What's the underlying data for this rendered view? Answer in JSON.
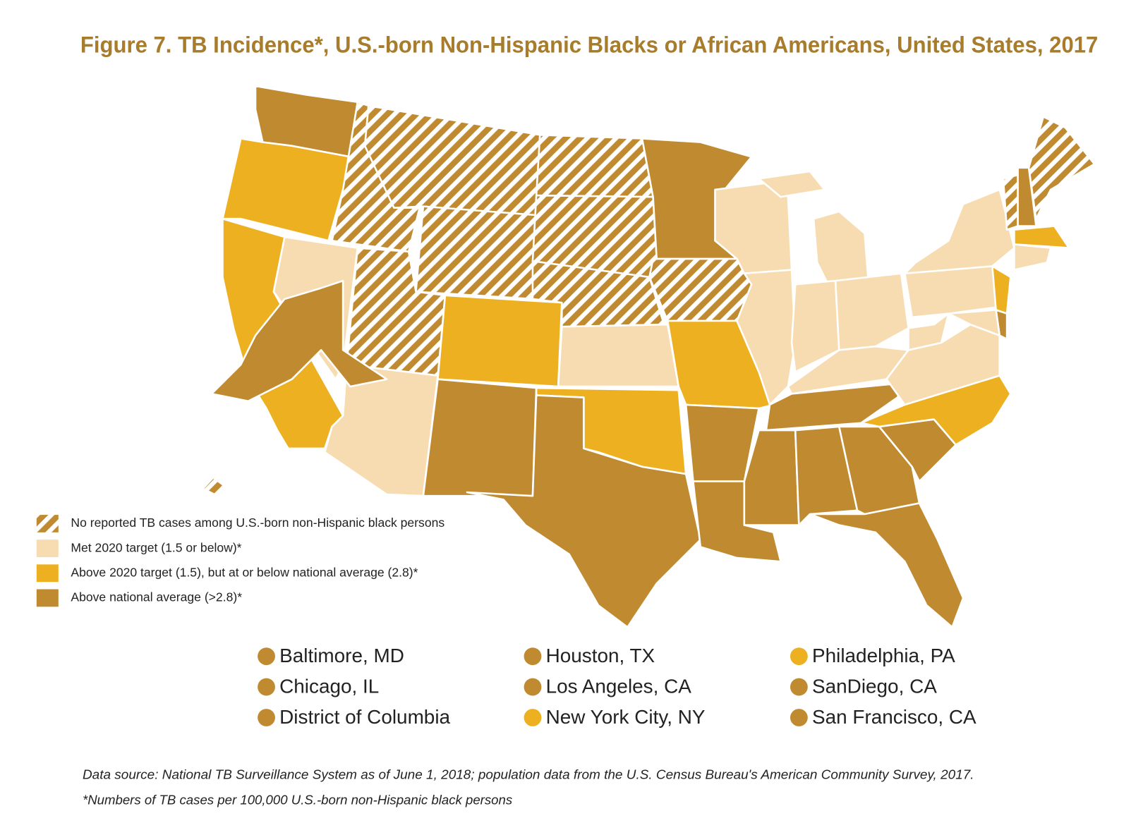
{
  "title": "Figure 7.  TB Incidence*, U.S.-born Non-Hispanic Blacks or African Americans, United States, 2017",
  "legend": [
    {
      "label": "No reported TB cases among U.S.-born non-Hispanic black persons",
      "color": "#c08a30",
      "pattern": "stripes"
    },
    {
      "label": "Met 2020 target (1.5 or below)*",
      "color": "#f7dcb1"
    },
    {
      "label": "Above 2020 target (1.5), but at or below national average (2.8)*",
      "color": "#edb021"
    },
    {
      "label": "Above national average (>2.8)*",
      "color": "#c08a30"
    }
  ],
  "cities": [
    {
      "label": "Baltimore, MD",
      "color": "#c08a30"
    },
    {
      "label": "Chicago, IL",
      "color": "#c08a30"
    },
    {
      "label": "District of Columbia",
      "color": "#c08a30"
    },
    {
      "label": "Houston, TX",
      "color": "#c08a30"
    },
    {
      "label": "Los Angeles, CA",
      "color": "#c08a30"
    },
    {
      "label": "New York City, NY",
      "color": "#edb021"
    },
    {
      "label": "Philadelphia, PA",
      "color": "#edb021"
    },
    {
      "label": "SanDiego, CA",
      "color": "#c08a30"
    },
    {
      "label": "San Francisco, CA",
      "color": "#c08a30"
    }
  ],
  "footnotes": [
    "Data source: National TB Surveillance System as of June 1, 2018; population data from the U.S. Census Bureau's American Community Survey, 2017.",
    "*Numbers of TB cases per 100,000 U.S.-born non-Hispanic black persons"
  ]
}
